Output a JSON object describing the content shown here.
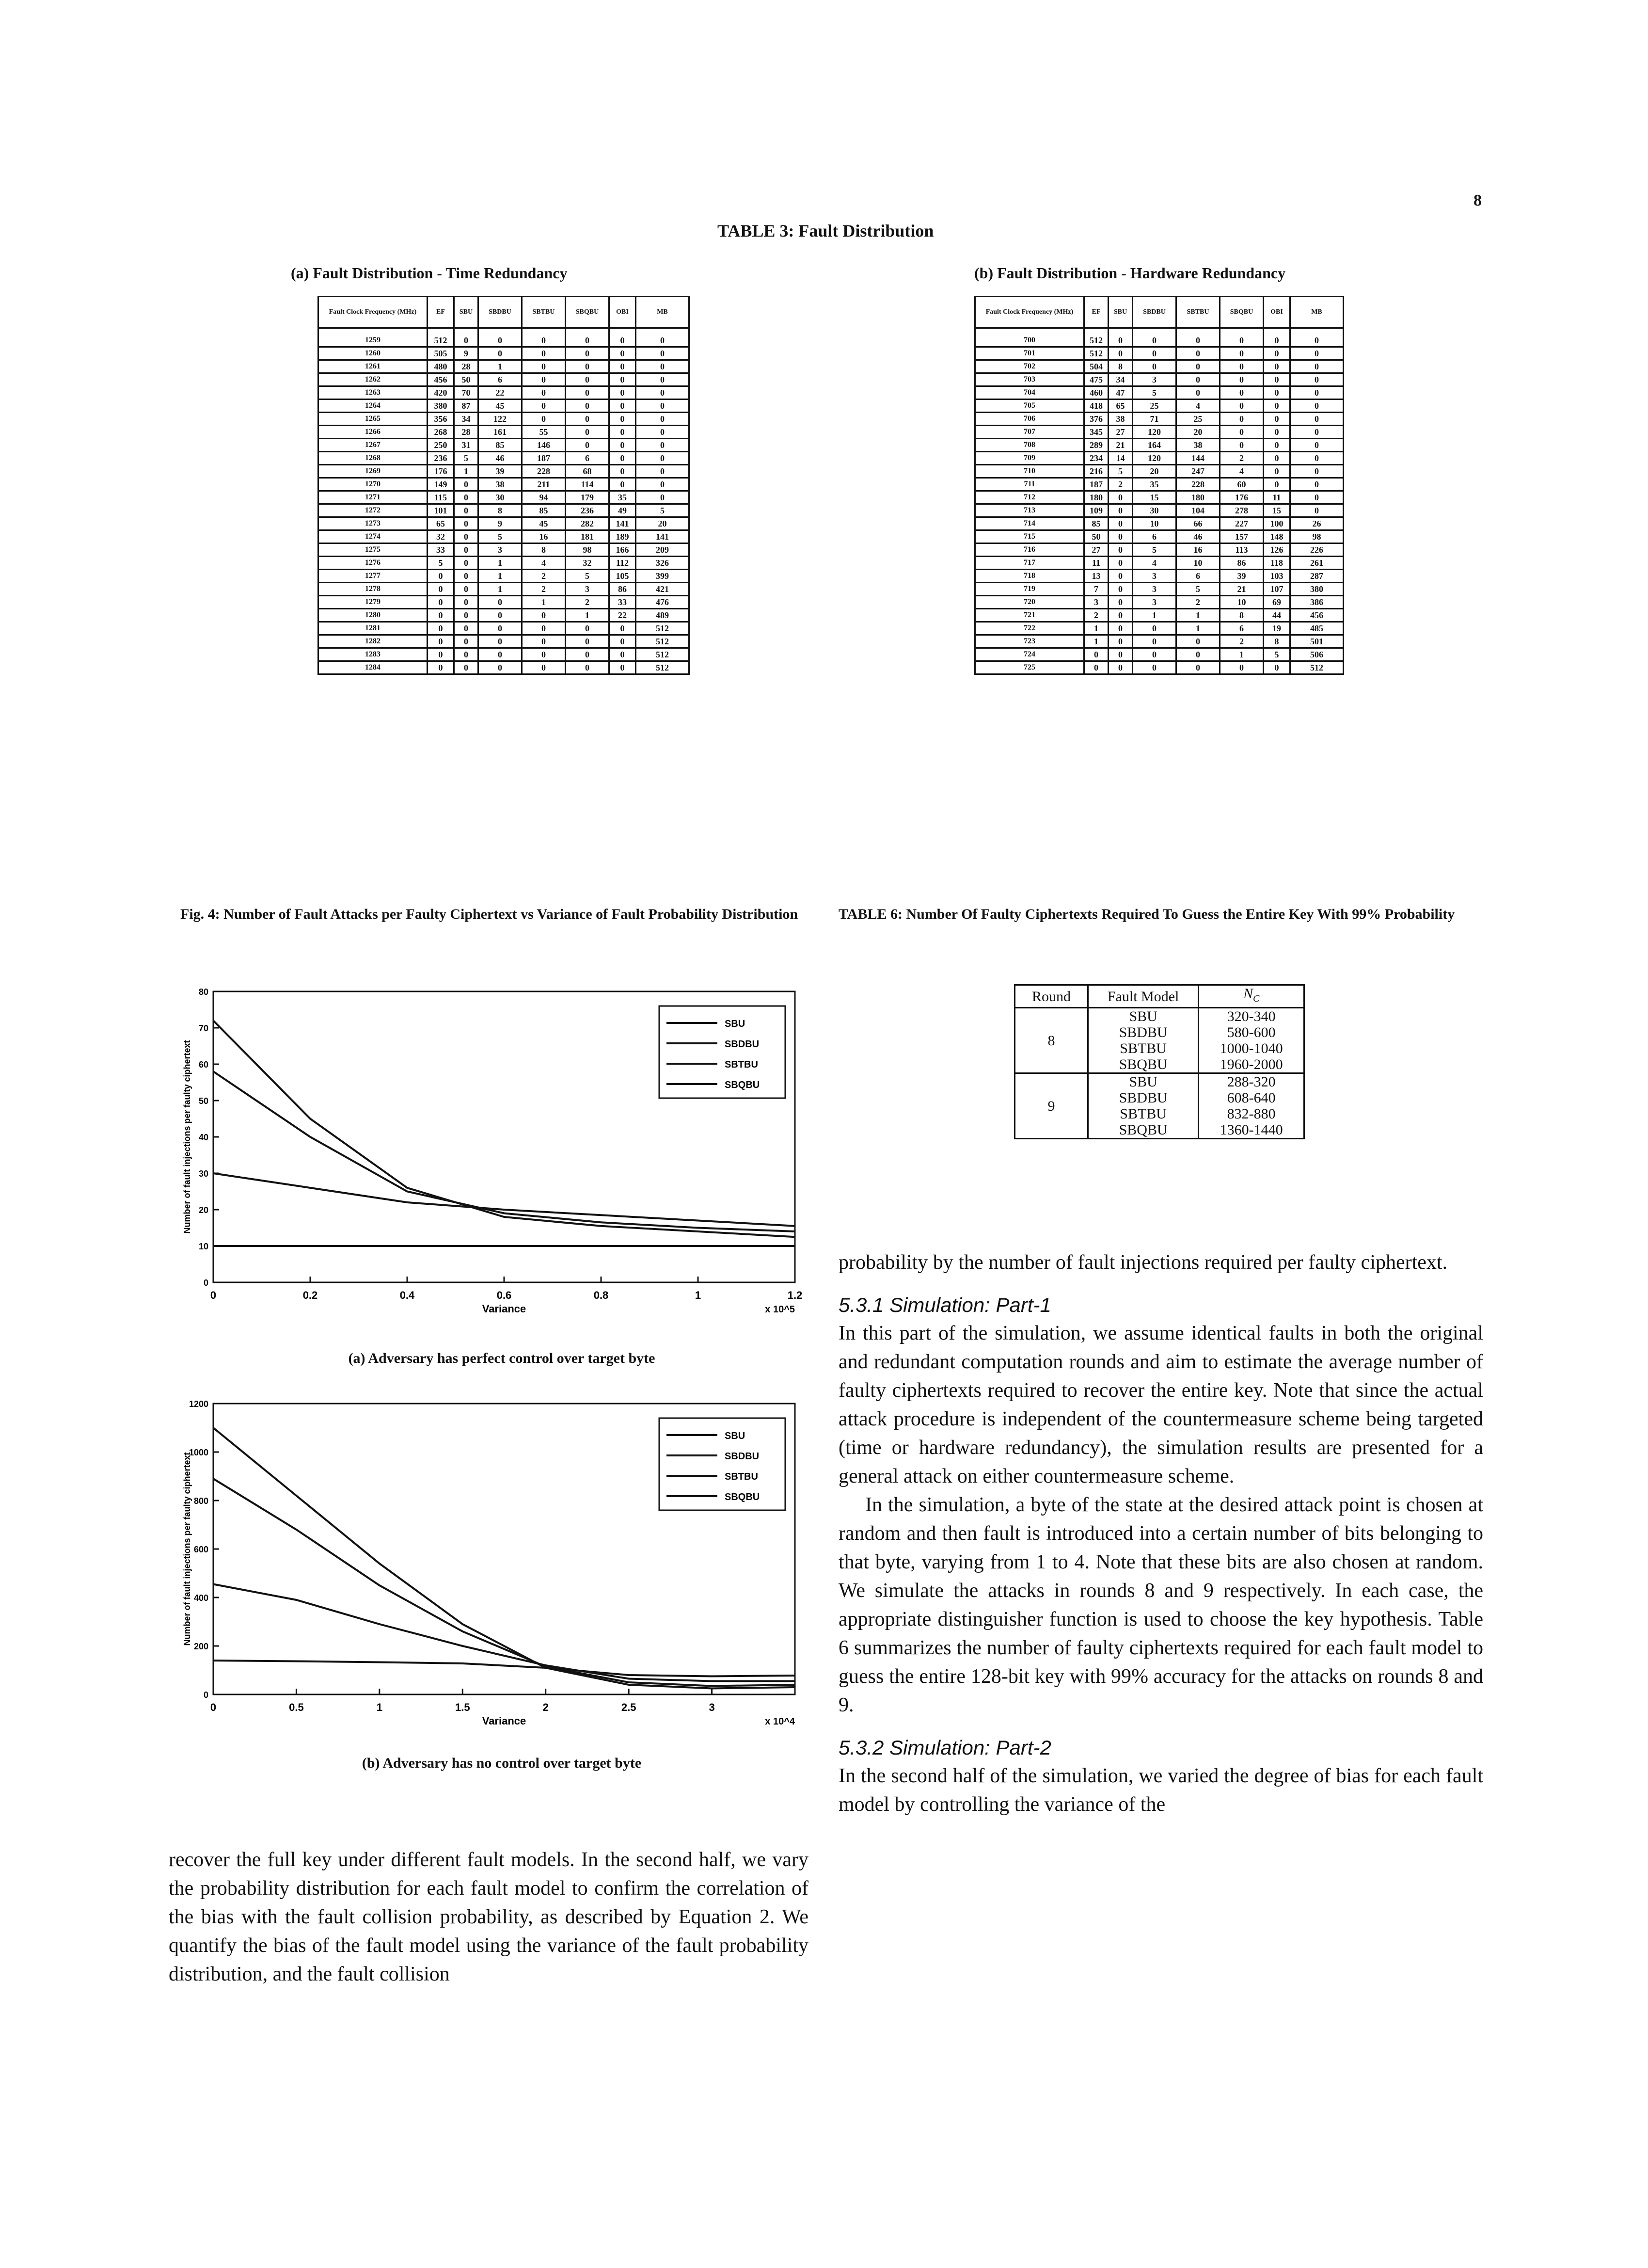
{
  "page_number": "8",
  "table3": {
    "title": "TABLE 3: Fault Distribution",
    "a": {
      "caption": "(a) Fault Distribution - Time Redundancy",
      "headers": [
        "Fault Clock Frequency (MHz)",
        "EF",
        "SBU",
        "SBDBU",
        "SBTBU",
        "SBQBU",
        "OBI",
        "MB"
      ],
      "rows": [
        [
          "1259",
          "512",
          "0",
          "0",
          "0",
          "0",
          "0",
          "0"
        ],
        [
          "1260",
          "505",
          "9",
          "0",
          "0",
          "0",
          "0",
          "0"
        ],
        [
          "1261",
          "480",
          "28",
          "1",
          "0",
          "0",
          "0",
          "0"
        ],
        [
          "1262",
          "456",
          "50",
          "6",
          "0",
          "0",
          "0",
          "0"
        ],
        [
          "1263",
          "420",
          "70",
          "22",
          "0",
          "0",
          "0",
          "0"
        ],
        [
          "1264",
          "380",
          "87",
          "45",
          "0",
          "0",
          "0",
          "0"
        ],
        [
          "1265",
          "356",
          "34",
          "122",
          "0",
          "0",
          "0",
          "0"
        ],
        [
          "1266",
          "268",
          "28",
          "161",
          "55",
          "0",
          "0",
          "0"
        ],
        [
          "1267",
          "250",
          "31",
          "85",
          "146",
          "0",
          "0",
          "0"
        ],
        [
          "1268",
          "236",
          "5",
          "46",
          "187",
          "6",
          "0",
          "0"
        ],
        [
          "1269",
          "176",
          "1",
          "39",
          "228",
          "68",
          "0",
          "0"
        ],
        [
          "1270",
          "149",
          "0",
          "38",
          "211",
          "114",
          "0",
          "0"
        ],
        [
          "1271",
          "115",
          "0",
          "30",
          "94",
          "179",
          "35",
          "0"
        ],
        [
          "1272",
          "101",
          "0",
          "8",
          "85",
          "236",
          "49",
          "5"
        ],
        [
          "1273",
          "65",
          "0",
          "9",
          "45",
          "282",
          "141",
          "20"
        ],
        [
          "1274",
          "32",
          "0",
          "5",
          "16",
          "181",
          "189",
          "141"
        ],
        [
          "1275",
          "33",
          "0",
          "3",
          "8",
          "98",
          "166",
          "209"
        ],
        [
          "1276",
          "5",
          "0",
          "1",
          "4",
          "32",
          "112",
          "326"
        ],
        [
          "1277",
          "0",
          "0",
          "1",
          "2",
          "5",
          "105",
          "399"
        ],
        [
          "1278",
          "0",
          "0",
          "1",
          "2",
          "3",
          "86",
          "421"
        ],
        [
          "1279",
          "0",
          "0",
          "0",
          "1",
          "2",
          "33",
          "476"
        ],
        [
          "1280",
          "0",
          "0",
          "0",
          "0",
          "1",
          "22",
          "489"
        ],
        [
          "1281",
          "0",
          "0",
          "0",
          "0",
          "0",
          "0",
          "512"
        ],
        [
          "1282",
          "0",
          "0",
          "0",
          "0",
          "0",
          "0",
          "512"
        ],
        [
          "1283",
          "0",
          "0",
          "0",
          "0",
          "0",
          "0",
          "512"
        ],
        [
          "1284",
          "0",
          "0",
          "0",
          "0",
          "0",
          "0",
          "512"
        ]
      ]
    },
    "b": {
      "caption": "(b) Fault Distribution - Hardware Redundancy",
      "headers": [
        "Fault Clock Frequency (MHz)",
        "EF",
        "SBU",
        "SBDBU",
        "SBTBU",
        "SBQBU",
        "OBI",
        "MB"
      ],
      "rows": [
        [
          "700",
          "512",
          "0",
          "0",
          "0",
          "0",
          "0",
          "0"
        ],
        [
          "701",
          "512",
          "0",
          "0",
          "0",
          "0",
          "0",
          "0"
        ],
        [
          "702",
          "504",
          "8",
          "0",
          "0",
          "0",
          "0",
          "0"
        ],
        [
          "703",
          "475",
          "34",
          "3",
          "0",
          "0",
          "0",
          "0"
        ],
        [
          "704",
          "460",
          "47",
          "5",
          "0",
          "0",
          "0",
          "0"
        ],
        [
          "705",
          "418",
          "65",
          "25",
          "4",
          "0",
          "0",
          "0"
        ],
        [
          "706",
          "376",
          "38",
          "71",
          "25",
          "0",
          "0",
          "0"
        ],
        [
          "707",
          "345",
          "27",
          "120",
          "20",
          "0",
          "0",
          "0"
        ],
        [
          "708",
          "289",
          "21",
          "164",
          "38",
          "0",
          "0",
          "0"
        ],
        [
          "709",
          "234",
          "14",
          "120",
          "144",
          "2",
          "0",
          "0"
        ],
        [
          "710",
          "216",
          "5",
          "20",
          "247",
          "4",
          "0",
          "0"
        ],
        [
          "711",
          "187",
          "2",
          "35",
          "228",
          "60",
          "0",
          "0"
        ],
        [
          "712",
          "180",
          "0",
          "15",
          "180",
          "176",
          "11",
          "0"
        ],
        [
          "713",
          "109",
          "0",
          "30",
          "104",
          "278",
          "15",
          "0"
        ],
        [
          "714",
          "85",
          "0",
          "10",
          "66",
          "227",
          "100",
          "26"
        ],
        [
          "715",
          "50",
          "0",
          "6",
          "46",
          "157",
          "148",
          "98"
        ],
        [
          "716",
          "27",
          "0",
          "5",
          "16",
          "113",
          "126",
          "226"
        ],
        [
          "717",
          "11",
          "0",
          "4",
          "10",
          "86",
          "118",
          "261"
        ],
        [
          "718",
          "13",
          "0",
          "3",
          "6",
          "39",
          "103",
          "287"
        ],
        [
          "719",
          "7",
          "0",
          "3",
          "5",
          "21",
          "107",
          "380"
        ],
        [
          "720",
          "3",
          "0",
          "3",
          "2",
          "10",
          "69",
          "386"
        ],
        [
          "721",
          "2",
          "0",
          "1",
          "1",
          "8",
          "44",
          "456"
        ],
        [
          "722",
          "1",
          "0",
          "0",
          "1",
          "6",
          "19",
          "485"
        ],
        [
          "723",
          "1",
          "0",
          "0",
          "0",
          "2",
          "8",
          "501"
        ],
        [
          "724",
          "0",
          "0",
          "0",
          "0",
          "1",
          "5",
          "506"
        ],
        [
          "725",
          "0",
          "0",
          "0",
          "0",
          "0",
          "0",
          "512"
        ]
      ]
    }
  },
  "figure4": {
    "caption": "Fig. 4: Number of Fault Attacks per Faulty Ciphertext vs Variance of Fault Probability Distribution"
  },
  "table6": {
    "caption": "TABLE 6: Number Of Faulty Ciphertexts Required To Guess the Entire Key With 99% Probability",
    "headers": [
      "Round",
      "Fault Model",
      "N_C"
    ],
    "groups": [
      {
        "round": "8",
        "rows": [
          [
            "SBU",
            "320-340"
          ],
          [
            "SBDBU",
            "580-600"
          ],
          [
            "SBTBU",
            "1000-1040"
          ],
          [
            "SBQBU",
            "1960-2000"
          ]
        ]
      },
      {
        "round": "9",
        "rows": [
          [
            "SBU",
            "288-320"
          ],
          [
            "SBDBU",
            "608-640"
          ],
          [
            "SBTBU",
            "832-880"
          ],
          [
            "SBQBU",
            "1360-1440"
          ]
        ]
      }
    ]
  },
  "chart_data": [
    {
      "type": "line",
      "subcaption": "(a) Adversary has perfect control over target byte",
      "xlim": [
        0,
        1.2
      ],
      "ylim": [
        0,
        80
      ],
      "x_ticks": [
        "0",
        "0.2",
        "0.4",
        "0.6",
        "0.8",
        "1",
        "1.2"
      ],
      "y_ticks": [
        "0",
        "10",
        "20",
        "30",
        "40",
        "50",
        "60",
        "70",
        "80"
      ],
      "x_exponent": "x 10^5",
      "xlabel": "Variance",
      "ylabel": "Number of fault injections per faulty ciphertext",
      "legend_position": "top-right",
      "series": [
        {
          "name": "SBU",
          "x": [
            0,
            0.2,
            0.4,
            0.6,
            0.8,
            1.0,
            1.2
          ],
          "y": [
            30,
            26,
            22,
            20,
            18.5,
            17,
            15.5
          ]
        },
        {
          "name": "SBDBU",
          "x": [
            0,
            0.2,
            0.4,
            0.6,
            0.8,
            1.0,
            1.2
          ],
          "y": [
            58,
            40,
            25,
            19,
            16.5,
            15,
            14
          ]
        },
        {
          "name": "SBTBU",
          "x": [
            0,
            0.2,
            0.4,
            0.6,
            0.8,
            1.0,
            1.2
          ],
          "y": [
            72,
            45,
            26,
            18,
            15.5,
            14,
            12.5
          ]
        },
        {
          "name": "SBQBU",
          "x": [
            0,
            0.2,
            0.4,
            0.6,
            0.8,
            1.0,
            1.2
          ],
          "y": [
            10,
            10,
            10,
            10,
            10,
            10,
            10
          ]
        }
      ]
    },
    {
      "type": "line",
      "subcaption": "(b) Adversary has no control over target byte",
      "xlim": [
        0,
        3.5
      ],
      "ylim": [
        0,
        1200
      ],
      "x_ticks": [
        "0",
        "0.5",
        "1",
        "1.5",
        "2",
        "2.5",
        "3"
      ],
      "y_ticks": [
        "0",
        "200",
        "400",
        "600",
        "800",
        "1000",
        "1200"
      ],
      "x_exponent": "x 10^4",
      "xlabel": "Variance",
      "ylabel": "Number of fault injections per faulty ciphertext",
      "legend_position": "top-right",
      "series": [
        {
          "name": "SBU",
          "x": [
            0,
            0.5,
            1.0,
            1.5,
            2.0,
            2.5,
            3.0,
            3.5
          ],
          "y": [
            140,
            137,
            133,
            128,
            110,
            80,
            75,
            78
          ]
        },
        {
          "name": "SBDBU",
          "x": [
            0,
            0.5,
            1.0,
            1.5,
            2.0,
            2.5,
            3.0,
            3.5
          ],
          "y": [
            455,
            390,
            290,
            200,
            120,
            65,
            55,
            55
          ]
        },
        {
          "name": "SBTBU",
          "x": [
            0,
            0.5,
            1.0,
            1.5,
            2.0,
            2.5,
            3.0,
            3.5
          ],
          "y": [
            890,
            680,
            450,
            260,
            115,
            50,
            35,
            40
          ]
        },
        {
          "name": "SBQBU",
          "x": [
            0,
            0.5,
            1.0,
            1.5,
            2.0,
            2.5,
            3.0,
            3.5
          ],
          "y": [
            1100,
            820,
            540,
            290,
            110,
            40,
            25,
            30
          ]
        }
      ]
    }
  ],
  "text": {
    "left_para": "recover the full key under different fault models. In the second half, we vary the probability distribution for each fault model to confirm the correlation of the bias with the fault collision probability, as described by Equation 2. We quantify the bias of the fault model using the variance of the fault probability distribution, and the fault collision",
    "right_para1": "probability by the number of fault injections required per faulty ciphertext.",
    "sec531": "5.3.1   Simulation: Part-1",
    "p531a": "In this part of the simulation, we assume identical faults in both the original and redundant computation rounds and aim to estimate the average number of faulty ciphertexts required to recover the entire key. Note that since the actual attack procedure is independent of the countermeasure scheme being targeted (time or hardware redundancy), the simulation results are presented for a general attack on either countermeasure scheme.",
    "p531b": "In the simulation, a byte of the state at the desired attack point is chosen at random and then fault is introduced into a certain number of bits belonging to that byte, varying from 1 to 4. Note that these bits are also chosen at random. We simulate the attacks in rounds 8 and 9 respectively. In each case, the appropriate distinguisher function is used to choose the key hypothesis. Table 6 summarizes the number of faulty ciphertexts required for each fault model to guess the entire 128-bit key with 99% accuracy for the attacks on rounds 8 and 9.",
    "sec532": "5.3.2   Simulation: Part-2",
    "p532": "In the second half of the simulation, we varied the degree of bias for each fault model by controlling the variance of the"
  }
}
